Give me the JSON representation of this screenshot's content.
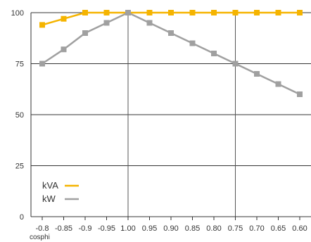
{
  "chart_data": {
    "type": "line",
    "categories": [
      "-0.8",
      "-0.85",
      "-0.9",
      "-0.95",
      "1.00",
      "0.95",
      "0.90",
      "0.85",
      "0.80",
      "0.75",
      "0.70",
      "0.65",
      "0.60"
    ],
    "series": [
      {
        "name": "kVA",
        "color": "#f5b400",
        "values": [
          94,
          97,
          100,
          100,
          100,
          100,
          100,
          100,
          100,
          100,
          100,
          100,
          100
        ]
      },
      {
        "name": "kW",
        "color": "#a0a0a0",
        "values": [
          75,
          82,
          90,
          95,
          100,
          95,
          90,
          85,
          80,
          75,
          70,
          65,
          60
        ]
      }
    ],
    "title": "",
    "xlabel": "cosphi",
    "ylabel": "",
    "ylim": [
      0,
      100
    ],
    "yticks": [
      0,
      25,
      50,
      75,
      100
    ],
    "grid": "horizontal lines at y ticks; vertical lines at 1.00 and 0.75",
    "legend": "bottom-left"
  }
}
